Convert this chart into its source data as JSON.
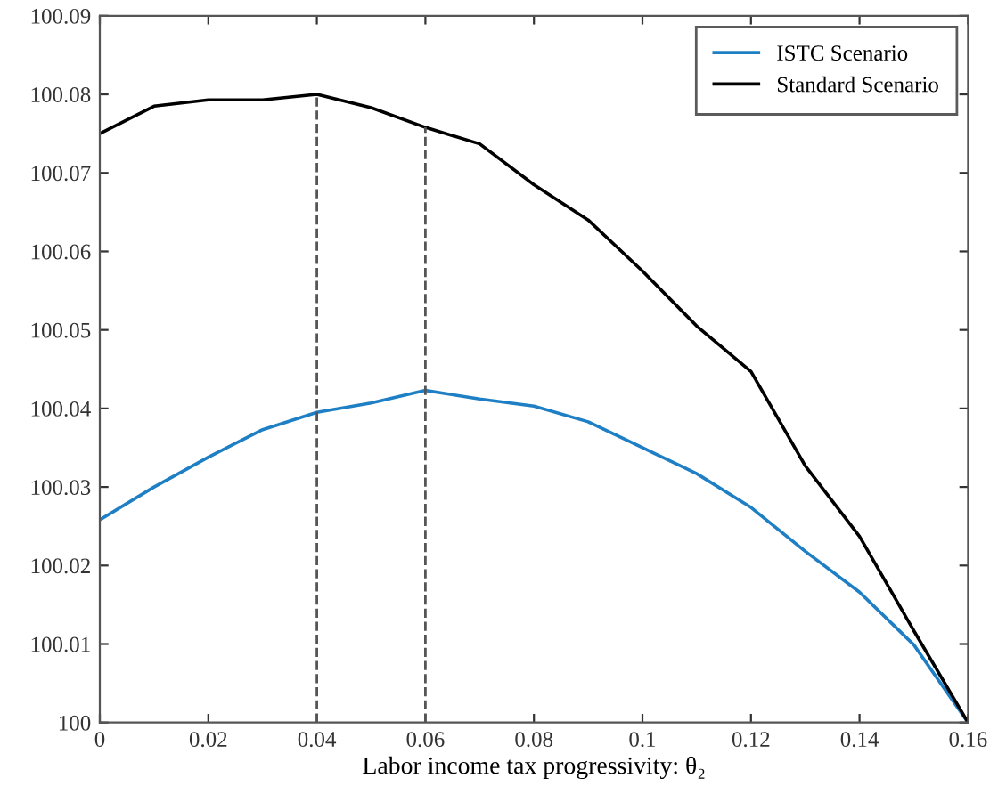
{
  "chart_data": {
    "type": "line",
    "xlabel": "Labor income tax progressivity: θ₂",
    "x": [
      0,
      0.01,
      0.02,
      0.03,
      0.04,
      0.05,
      0.06,
      0.07,
      0.08,
      0.09,
      0.1,
      0.11,
      0.12,
      0.13,
      0.14,
      0.15,
      0.16
    ],
    "series": [
      {
        "name": "ISTC Scenario",
        "color": "#1f7fc4",
        "values": [
          100.0258,
          100.03,
          100.0338,
          100.0373,
          100.0395,
          100.0407,
          100.0423,
          100.0412,
          100.0403,
          100.0383,
          100.035,
          100.0317,
          100.0274,
          100.0218,
          100.0166,
          100.0099,
          100.0
        ]
      },
      {
        "name": "Standard Scenario",
        "color": "#000000",
        "values": [
          100.075,
          100.0785,
          100.0793,
          100.0793,
          100.08,
          100.0783,
          100.0758,
          100.0737,
          100.0685,
          100.064,
          100.0575,
          100.0505,
          100.0447,
          100.0327,
          100.0237,
          100.0117,
          100.0
        ]
      }
    ],
    "xlim": [
      0,
      0.16
    ],
    "xticks": [
      0,
      0.02,
      0.04,
      0.06,
      0.08,
      0.1,
      0.12,
      0.14,
      0.16
    ],
    "ylim": [
      100,
      100.09
    ],
    "yticks": [
      100,
      100.01,
      100.02,
      100.03,
      100.04,
      100.05,
      100.06,
      100.07,
      100.08,
      100.09
    ],
    "ref_lines": [
      {
        "axis": "x",
        "value": 0.04,
        "color": "#555555",
        "line_style": "dashed"
      },
      {
        "axis": "x",
        "value": 0.06,
        "color": "#555555",
        "line_style": "dashed"
      }
    ],
    "grid": false,
    "legend": "top right",
    "marker": "none",
    "line_style": "solid"
  }
}
